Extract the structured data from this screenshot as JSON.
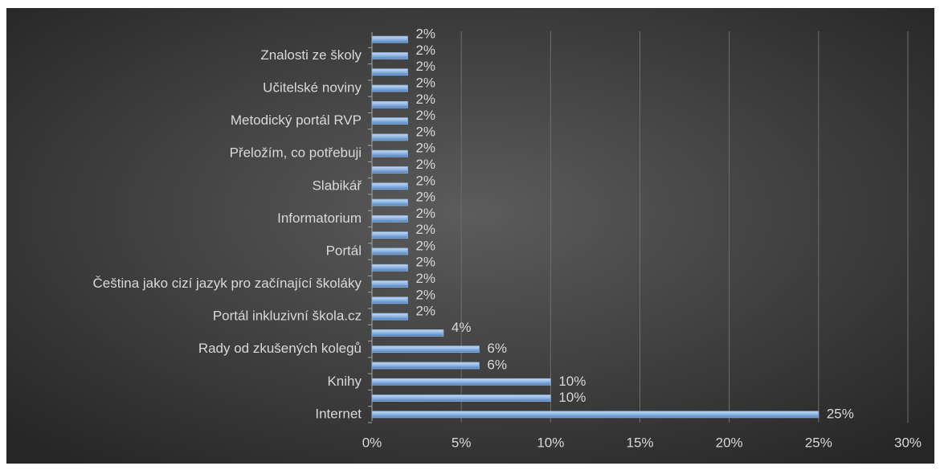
{
  "chart_data": {
    "type": "barh",
    "categories": [
      "Internet",
      null,
      "Knihy",
      null,
      "Rady od zkušených kolegů",
      null,
      "Portál inkluzivní škola.cz",
      null,
      "Čeština jako cizí jazyk pro začínající školáky",
      null,
      "Portál",
      null,
      "Informatorium",
      null,
      "Slabikář",
      null,
      "Přeložím, co potřebuji",
      null,
      "Metodický portál RVP",
      null,
      "Učitelské noviny",
      null,
      "Znalosti ze školy",
      null
    ],
    "values": [
      25,
      10,
      10,
      6,
      6,
      4,
      2,
      2,
      2,
      2,
      2,
      2,
      2,
      2,
      2,
      2,
      2,
      2,
      2,
      2,
      2,
      2,
      2,
      2
    ],
    "value_labels": [
      "25%",
      "10%",
      "10%",
      "6%",
      "6%",
      "4%",
      "2%",
      "2%",
      "2%",
      "2%",
      "2%",
      "2%",
      "2%",
      "2%",
      "2%",
      "2%",
      "2%",
      "2%",
      "2%",
      "2%",
      "2%",
      "2%",
      "2%",
      "2%"
    ],
    "color": "#8db4e2",
    "xlim": [
      0,
      30
    ],
    "xticks": [
      {
        "value": 0,
        "label": "0%"
      },
      {
        "value": 5,
        "label": "5%"
      },
      {
        "value": 10,
        "label": "10%"
      },
      {
        "value": 15,
        "label": "15%"
      },
      {
        "value": 20,
        "label": "20%"
      },
      {
        "value": 25,
        "label": "25%"
      },
      {
        "value": 30,
        "label": "30%"
      }
    ],
    "grid": true
  }
}
